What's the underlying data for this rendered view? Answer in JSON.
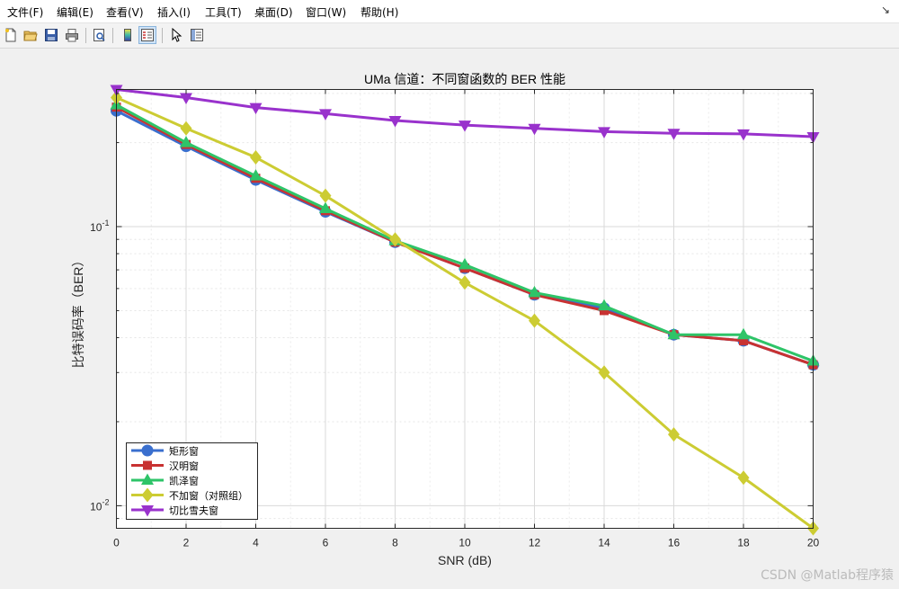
{
  "menu": [
    "文件(F)",
    "编辑(E)",
    "查看(V)",
    "插入(I)",
    "工具(T)",
    "桌面(D)",
    "窗口(W)",
    "帮助(H)"
  ],
  "pin_glyph": "↘",
  "toolbar": [
    "new-file-icon",
    "open-folder-icon",
    "save-icon",
    "print-icon",
    "print-preview-icon",
    "colorbar-icon",
    "legend-icon",
    "pointer-icon",
    "property-inspector-icon"
  ],
  "watermark": "CSDN @Matlab程序猿",
  "chart_data": {
    "type": "line",
    "title": "UMa 信道：不同窗函数的 BER 性能",
    "xlabel": "SNR (dB)",
    "ylabel": "比特误码率（BER）",
    "xlim": [
      0,
      20
    ],
    "ylim": [
      0.0083,
      0.31
    ],
    "yscale": "log",
    "grid": true,
    "minor_grid": true,
    "legend_location": "bottom-left",
    "xticks": [
      0,
      2,
      4,
      6,
      8,
      10,
      12,
      14,
      16,
      18,
      20
    ],
    "yticks": [
      {
        "value": 0.01,
        "base": "10",
        "exp": "-2"
      },
      {
        "value": 0.1,
        "base": "10",
        "exp": "-1"
      }
    ],
    "x": [
      0,
      2,
      4,
      6,
      8,
      10,
      12,
      14,
      16,
      18,
      20
    ],
    "series": [
      {
        "name": "矩形窗",
        "color": "#3a6fce",
        "marker": "circle",
        "values": [
          0.26,
          0.194,
          0.147,
          0.113,
          0.088,
          0.071,
          0.057,
          0.051,
          0.041,
          0.039,
          0.032
        ]
      },
      {
        "name": "汉明窗",
        "color": "#c83232",
        "marker": "square",
        "values": [
          0.268,
          0.197,
          0.149,
          0.114,
          0.088,
          0.071,
          0.057,
          0.05,
          0.041,
          0.039,
          0.032
        ]
      },
      {
        "name": "凯泽窗",
        "color": "#2ec468",
        "marker": "triangle-up",
        "values": [
          0.273,
          0.2,
          0.152,
          0.116,
          0.089,
          0.073,
          0.058,
          0.052,
          0.041,
          0.041,
          0.033
        ]
      },
      {
        "name": "不加窗（对照组）",
        "color": "#cccc33",
        "marker": "diamond",
        "values": [
          0.29,
          0.225,
          0.177,
          0.129,
          0.09,
          0.063,
          0.046,
          0.03,
          0.018,
          0.0126,
          0.0083
        ]
      },
      {
        "name": "切比雪夫窗",
        "color": "#9932cc",
        "marker": "triangle-down",
        "values": [
          0.31,
          0.29,
          0.267,
          0.254,
          0.24,
          0.231,
          0.225,
          0.219,
          0.216,
          0.215,
          0.21
        ]
      }
    ]
  }
}
